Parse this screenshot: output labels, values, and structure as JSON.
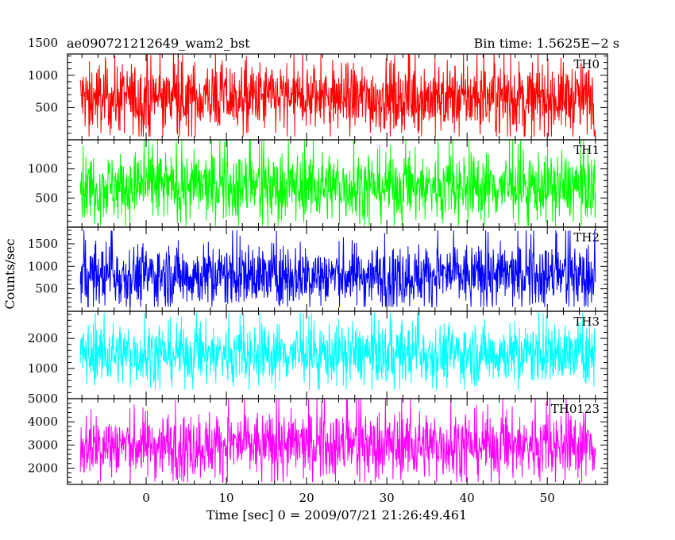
{
  "chart_data": {
    "type": "line",
    "title_left": "ae090721212649_wam2_bst",
    "title_right": "Bin time: 1.5625E−2 s",
    "xlabel": "Time [sec] 0 = 2009/07/21 21:26:49.461",
    "ylabel": "Counts/sec",
    "x_range": [
      -8.2,
      56.0
    ],
    "xlim": [
      -9.8,
      57.5
    ],
    "bin_time": 0.015625,
    "x_ticks": [
      0,
      10,
      20,
      30,
      40,
      50
    ],
    "grid": false,
    "series": [
      {
        "name": "TH0",
        "color": "#ff0000",
        "ylim": [
          0,
          1330
        ],
        "ticks": [
          500,
          1000,
          1500
        ],
        "mean": 650,
        "p_low": 120,
        "p_high": 1250,
        "y_min_obs": 50,
        "y_max_obs": 1400
      },
      {
        "name": "TH1",
        "color": "#00ff00",
        "ylim": [
          0,
          1500
        ],
        "ticks": [
          500,
          1000
        ],
        "mean": 700,
        "p_low": 80,
        "p_high": 1300,
        "y_min_obs": 20,
        "y_max_obs": 1500
      },
      {
        "name": "TH2",
        "color": "#0000ff",
        "ylim": [
          0,
          1870
        ],
        "ticks": [
          500,
          1000,
          1500
        ],
        "mean": 800,
        "p_low": 150,
        "p_high": 1600,
        "y_min_obs": 100,
        "y_max_obs": 1800
      },
      {
        "name": "TH3",
        "color": "#00ffff",
        "ylim": [
          0,
          2900
        ],
        "ticks": [
          1000,
          2000
        ],
        "mean": 1500,
        "p_low": 400,
        "p_high": 2500,
        "y_min_obs": 300,
        "y_max_obs": 2850
      },
      {
        "name": "TH0123",
        "color": "#ff00ff",
        "ylim": [
          1300,
          5000
        ],
        "ticks": [
          2000,
          3000,
          4000,
          5000
        ],
        "mean": 3000,
        "p_low": 1600,
        "p_high": 4600,
        "y_min_obs": 1400,
        "y_max_obs": 5000
      }
    ]
  }
}
